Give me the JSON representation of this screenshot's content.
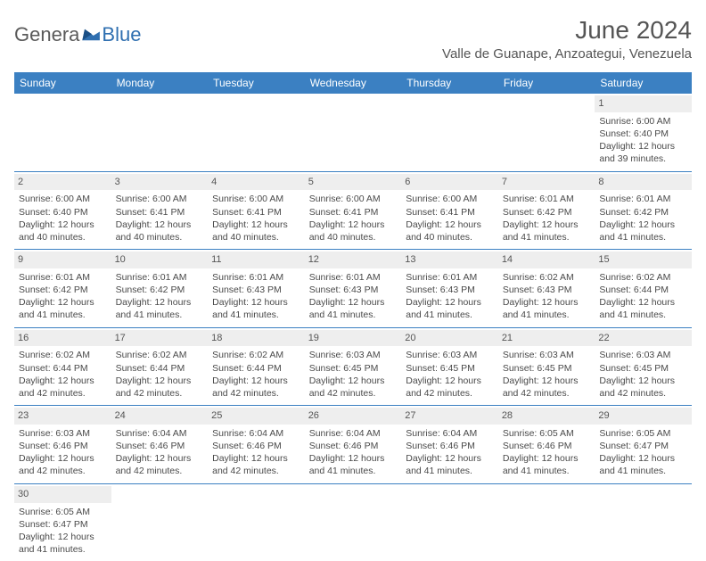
{
  "logo": {
    "text1": "Genera",
    "text2": "Blue"
  },
  "title": "June 2024",
  "location": "Valle de Guanape, Anzoategui, Venezuela",
  "colors": {
    "header_bg": "#3b80c2",
    "header_text": "#ffffff",
    "grid_line": "#3b80c2",
    "daynum_bg": "#eeeeee",
    "body_text": "#4a4a4a",
    "logo_gray": "#5a5a5a",
    "logo_blue": "#2f6fb0",
    "background": "#ffffff"
  },
  "fonts": {
    "title_size_pt": 21,
    "location_size_pt": 11,
    "dayheader_size_pt": 9,
    "cell_size_pt": 8,
    "logo_size_pt": 17
  },
  "day_headers": [
    "Sunday",
    "Monday",
    "Tuesday",
    "Wednesday",
    "Thursday",
    "Friday",
    "Saturday"
  ],
  "weeks": [
    [
      null,
      null,
      null,
      null,
      null,
      null,
      {
        "n": "1",
        "sr": "Sunrise: 6:00 AM",
        "ss": "Sunset: 6:40 PM",
        "dl1": "Daylight: 12 hours",
        "dl2": "and 39 minutes."
      }
    ],
    [
      {
        "n": "2",
        "sr": "Sunrise: 6:00 AM",
        "ss": "Sunset: 6:40 PM",
        "dl1": "Daylight: 12 hours",
        "dl2": "and 40 minutes."
      },
      {
        "n": "3",
        "sr": "Sunrise: 6:00 AM",
        "ss": "Sunset: 6:41 PM",
        "dl1": "Daylight: 12 hours",
        "dl2": "and 40 minutes."
      },
      {
        "n": "4",
        "sr": "Sunrise: 6:00 AM",
        "ss": "Sunset: 6:41 PM",
        "dl1": "Daylight: 12 hours",
        "dl2": "and 40 minutes."
      },
      {
        "n": "5",
        "sr": "Sunrise: 6:00 AM",
        "ss": "Sunset: 6:41 PM",
        "dl1": "Daylight: 12 hours",
        "dl2": "and 40 minutes."
      },
      {
        "n": "6",
        "sr": "Sunrise: 6:00 AM",
        "ss": "Sunset: 6:41 PM",
        "dl1": "Daylight: 12 hours",
        "dl2": "and 40 minutes."
      },
      {
        "n": "7",
        "sr": "Sunrise: 6:01 AM",
        "ss": "Sunset: 6:42 PM",
        "dl1": "Daylight: 12 hours",
        "dl2": "and 41 minutes."
      },
      {
        "n": "8",
        "sr": "Sunrise: 6:01 AM",
        "ss": "Sunset: 6:42 PM",
        "dl1": "Daylight: 12 hours",
        "dl2": "and 41 minutes."
      }
    ],
    [
      {
        "n": "9",
        "sr": "Sunrise: 6:01 AM",
        "ss": "Sunset: 6:42 PM",
        "dl1": "Daylight: 12 hours",
        "dl2": "and 41 minutes."
      },
      {
        "n": "10",
        "sr": "Sunrise: 6:01 AM",
        "ss": "Sunset: 6:42 PM",
        "dl1": "Daylight: 12 hours",
        "dl2": "and 41 minutes."
      },
      {
        "n": "11",
        "sr": "Sunrise: 6:01 AM",
        "ss": "Sunset: 6:43 PM",
        "dl1": "Daylight: 12 hours",
        "dl2": "and 41 minutes."
      },
      {
        "n": "12",
        "sr": "Sunrise: 6:01 AM",
        "ss": "Sunset: 6:43 PM",
        "dl1": "Daylight: 12 hours",
        "dl2": "and 41 minutes."
      },
      {
        "n": "13",
        "sr": "Sunrise: 6:01 AM",
        "ss": "Sunset: 6:43 PM",
        "dl1": "Daylight: 12 hours",
        "dl2": "and 41 minutes."
      },
      {
        "n": "14",
        "sr": "Sunrise: 6:02 AM",
        "ss": "Sunset: 6:43 PM",
        "dl1": "Daylight: 12 hours",
        "dl2": "and 41 minutes."
      },
      {
        "n": "15",
        "sr": "Sunrise: 6:02 AM",
        "ss": "Sunset: 6:44 PM",
        "dl1": "Daylight: 12 hours",
        "dl2": "and 41 minutes."
      }
    ],
    [
      {
        "n": "16",
        "sr": "Sunrise: 6:02 AM",
        "ss": "Sunset: 6:44 PM",
        "dl1": "Daylight: 12 hours",
        "dl2": "and 42 minutes."
      },
      {
        "n": "17",
        "sr": "Sunrise: 6:02 AM",
        "ss": "Sunset: 6:44 PM",
        "dl1": "Daylight: 12 hours",
        "dl2": "and 42 minutes."
      },
      {
        "n": "18",
        "sr": "Sunrise: 6:02 AM",
        "ss": "Sunset: 6:44 PM",
        "dl1": "Daylight: 12 hours",
        "dl2": "and 42 minutes."
      },
      {
        "n": "19",
        "sr": "Sunrise: 6:03 AM",
        "ss": "Sunset: 6:45 PM",
        "dl1": "Daylight: 12 hours",
        "dl2": "and 42 minutes."
      },
      {
        "n": "20",
        "sr": "Sunrise: 6:03 AM",
        "ss": "Sunset: 6:45 PM",
        "dl1": "Daylight: 12 hours",
        "dl2": "and 42 minutes."
      },
      {
        "n": "21",
        "sr": "Sunrise: 6:03 AM",
        "ss": "Sunset: 6:45 PM",
        "dl1": "Daylight: 12 hours",
        "dl2": "and 42 minutes."
      },
      {
        "n": "22",
        "sr": "Sunrise: 6:03 AM",
        "ss": "Sunset: 6:45 PM",
        "dl1": "Daylight: 12 hours",
        "dl2": "and 42 minutes."
      }
    ],
    [
      {
        "n": "23",
        "sr": "Sunrise: 6:03 AM",
        "ss": "Sunset: 6:46 PM",
        "dl1": "Daylight: 12 hours",
        "dl2": "and 42 minutes."
      },
      {
        "n": "24",
        "sr": "Sunrise: 6:04 AM",
        "ss": "Sunset: 6:46 PM",
        "dl1": "Daylight: 12 hours",
        "dl2": "and 42 minutes."
      },
      {
        "n": "25",
        "sr": "Sunrise: 6:04 AM",
        "ss": "Sunset: 6:46 PM",
        "dl1": "Daylight: 12 hours",
        "dl2": "and 42 minutes."
      },
      {
        "n": "26",
        "sr": "Sunrise: 6:04 AM",
        "ss": "Sunset: 6:46 PM",
        "dl1": "Daylight: 12 hours",
        "dl2": "and 41 minutes."
      },
      {
        "n": "27",
        "sr": "Sunrise: 6:04 AM",
        "ss": "Sunset: 6:46 PM",
        "dl1": "Daylight: 12 hours",
        "dl2": "and 41 minutes."
      },
      {
        "n": "28",
        "sr": "Sunrise: 6:05 AM",
        "ss": "Sunset: 6:46 PM",
        "dl1": "Daylight: 12 hours",
        "dl2": "and 41 minutes."
      },
      {
        "n": "29",
        "sr": "Sunrise: 6:05 AM",
        "ss": "Sunset: 6:47 PM",
        "dl1": "Daylight: 12 hours",
        "dl2": "and 41 minutes."
      }
    ],
    [
      {
        "n": "30",
        "sr": "Sunrise: 6:05 AM",
        "ss": "Sunset: 6:47 PM",
        "dl1": "Daylight: 12 hours",
        "dl2": "and 41 minutes."
      },
      null,
      null,
      null,
      null,
      null,
      null
    ]
  ]
}
